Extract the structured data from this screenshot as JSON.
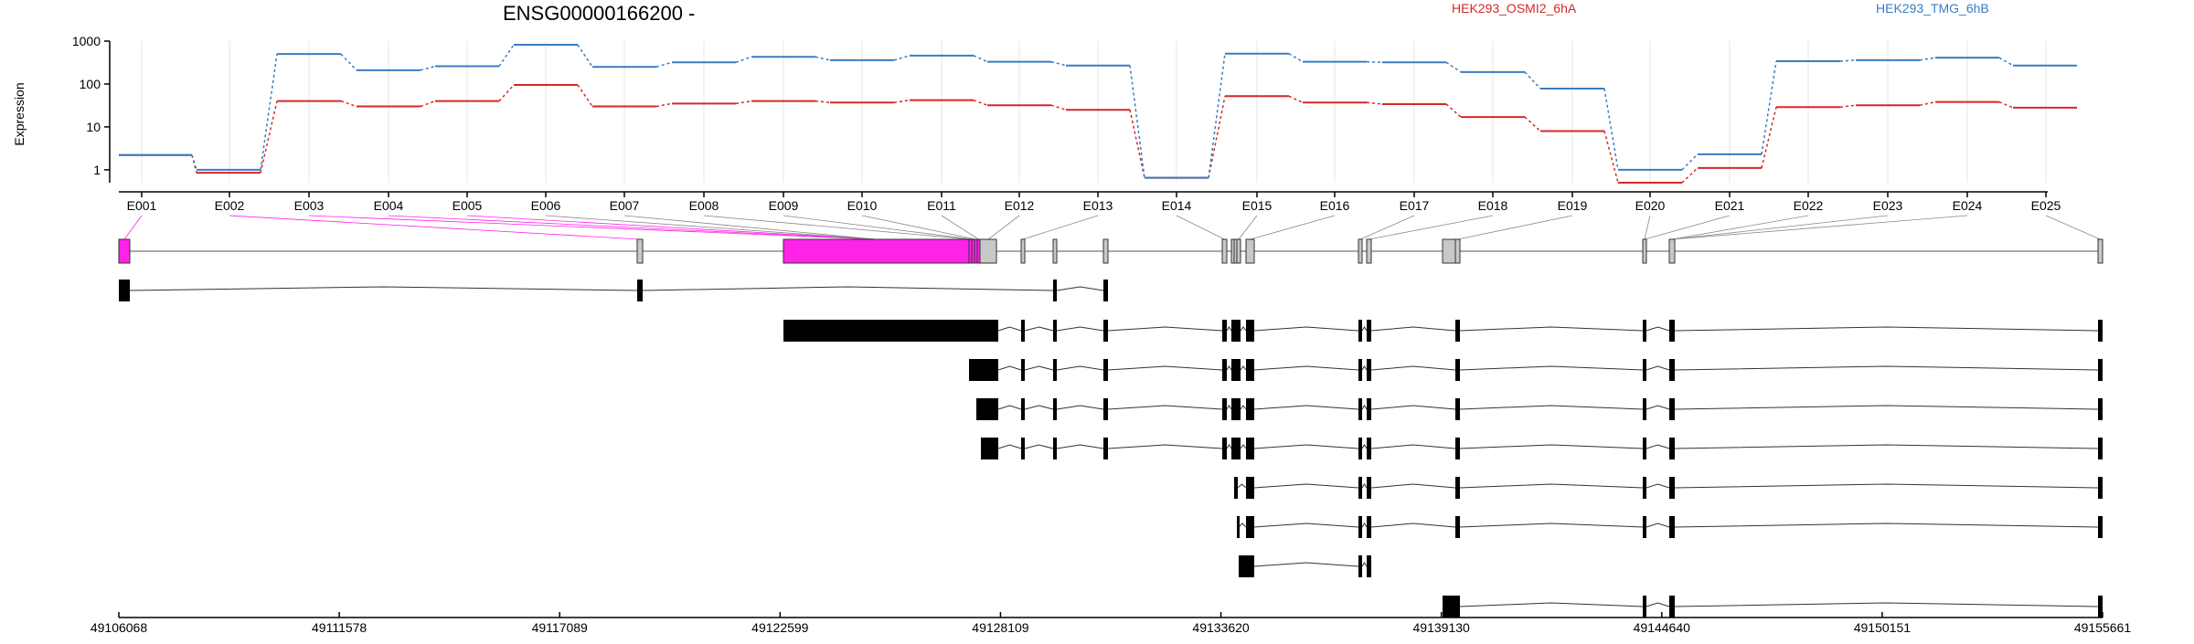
{
  "colors": {
    "series_a": "#d62728",
    "series_b": "#3a7dc0",
    "highlight_exon": "#ff22e8",
    "feature": "#c8c8c8",
    "transcript": "#000000"
  },
  "chart_data": {
    "type": "line",
    "title": "ENSG00000166200 -",
    "ylabel": "Expression",
    "yscale": "log",
    "ylim": [
      0.5,
      1000
    ],
    "yticks": [
      "1",
      "10",
      "100",
      "1000"
    ],
    "legend_placement": "top",
    "categories": [
      "E001",
      "E002",
      "E003",
      "E004",
      "E005",
      "E006",
      "E007",
      "E008",
      "E009",
      "E010",
      "E011",
      "E012",
      "E013",
      "E014",
      "E015",
      "E016",
      "E017",
      "E018",
      "E019",
      "E020",
      "E021",
      "E022",
      "E023",
      "E024",
      "E025"
    ],
    "series": [
      {
        "name": "HEK293_OSMI2_6hA",
        "color": "#d62728",
        "values": [
          2.2,
          0.85,
          40,
          30,
          40,
          95,
          30,
          35,
          40,
          37,
          42,
          32,
          25,
          0.65,
          52,
          37,
          34,
          17,
          8,
          0.5,
          1.1,
          29,
          32,
          38,
          28
        ]
      },
      {
        "name": "HEK293_TMG_6hB",
        "color": "#3a7dc0",
        "values": [
          2.2,
          1.0,
          500,
          210,
          260,
          820,
          250,
          320,
          430,
          360,
          460,
          330,
          270,
          0.65,
          510,
          330,
          320,
          190,
          78,
          1.0,
          2.3,
          340,
          360,
          410,
          270
        ]
      }
    ],
    "genomic_axis": {
      "range": [
        49106068,
        49155661
      ],
      "tick_labels": [
        "49106068",
        "49111578",
        "49117089",
        "49122599",
        "49128109",
        "49133620",
        "49139130",
        "49144640",
        "49150151",
        "49155661"
      ]
    }
  }
}
